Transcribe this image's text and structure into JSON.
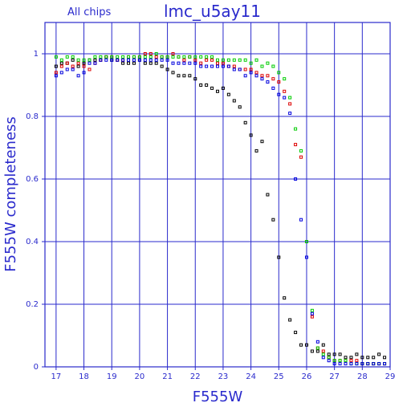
{
  "chart_data": {
    "type": "scatter",
    "subtitle": "All chips",
    "title": "lmc_u5ay11",
    "xlabel": "F555W",
    "ylabel": "F555W completeness",
    "xlim": [
      16.6,
      29
    ],
    "ylim": [
      0,
      1.1
    ],
    "xticks": [
      17,
      18,
      19,
      20,
      21,
      22,
      23,
      24,
      25,
      26,
      27,
      28,
      29
    ],
    "yticks": [
      0,
      0.2,
      0.4,
      0.6,
      0.8,
      1
    ],
    "ytick_labels": [
      "0",
      "0.2",
      "0.4",
      "0.6",
      "0.8",
      "1"
    ],
    "grid": true,
    "colors": {
      "axis": "#2a2acc",
      "grid": "#2a2acc"
    },
    "series": [
      {
        "color": "#000000",
        "x": [
          17.0,
          17.2,
          17.4,
          17.6,
          17.8,
          18.0,
          18.2,
          18.4,
          18.6,
          18.8,
          19.0,
          19.2,
          19.4,
          19.6,
          19.8,
          20.0,
          20.2,
          20.4,
          20.6,
          20.8,
          21.0,
          21.2,
          21.4,
          21.6,
          21.8,
          22.0,
          22.2,
          22.4,
          22.6,
          22.8,
          23.0,
          23.2,
          23.4,
          23.6,
          23.8,
          24.0,
          24.2,
          24.4,
          24.6,
          24.8,
          25.0,
          25.2,
          25.4,
          25.6,
          25.8,
          26.0,
          26.2,
          26.4,
          26.6,
          26.8,
          27.0,
          27.2,
          27.4,
          27.6,
          27.8,
          28.0,
          28.2,
          28.4,
          28.6,
          28.8
        ],
        "y": [
          0.96,
          0.97,
          0.97,
          0.98,
          0.96,
          0.97,
          0.98,
          0.98,
          0.98,
          0.99,
          0.98,
          0.98,
          0.97,
          0.97,
          0.97,
          0.98,
          0.97,
          0.97,
          0.97,
          0.96,
          0.95,
          0.94,
          0.93,
          0.93,
          0.93,
          0.92,
          0.9,
          0.9,
          0.89,
          0.88,
          0.89,
          0.87,
          0.85,
          0.83,
          0.78,
          0.74,
          0.69,
          0.72,
          0.55,
          0.47,
          0.35,
          0.22,
          0.15,
          0.11,
          0.07,
          0.07,
          0.05,
          0.05,
          0.07,
          0.04,
          0.04,
          0.04,
          0.03,
          0.03,
          0.04,
          0.03,
          0.03,
          0.03,
          0.04,
          0.03
        ]
      },
      {
        "color": "#dd0000",
        "x": [
          17.0,
          17.2,
          17.4,
          17.6,
          17.8,
          18.0,
          18.2,
          18.4,
          18.6,
          18.8,
          19.0,
          19.2,
          19.4,
          19.6,
          19.8,
          20.0,
          20.2,
          20.4,
          20.6,
          20.8,
          21.0,
          21.2,
          21.4,
          21.6,
          21.8,
          22.0,
          22.2,
          22.4,
          22.6,
          22.8,
          23.0,
          23.2,
          23.4,
          23.6,
          23.8,
          24.0,
          24.2,
          24.4,
          24.6,
          24.8,
          25.0,
          25.2,
          25.4,
          25.6,
          25.8,
          26.0,
          26.2,
          26.4,
          26.6,
          26.8,
          27.0,
          27.2,
          27.4,
          27.6,
          27.8,
          28.0,
          28.2,
          28.4,
          28.6,
          28.8
        ],
        "y": [
          0.94,
          0.96,
          0.97,
          0.96,
          0.97,
          0.96,
          0.95,
          0.97,
          0.98,
          0.99,
          0.99,
          0.98,
          0.98,
          0.99,
          0.99,
          0.99,
          1.0,
          1.0,
          0.99,
          0.99,
          0.99,
          1.0,
          0.99,
          0.98,
          0.99,
          0.98,
          0.97,
          0.98,
          0.98,
          0.97,
          0.97,
          0.96,
          0.96,
          0.95,
          0.95,
          0.95,
          0.94,
          0.93,
          0.93,
          0.92,
          0.91,
          0.88,
          0.84,
          0.71,
          0.67,
          0.4,
          0.16,
          0.06,
          0.05,
          0.03,
          0.02,
          0.02,
          0.02,
          0.02,
          0.02,
          0.01,
          0.01,
          0.01,
          0.01,
          0.01
        ]
      },
      {
        "color": "#00cc00",
        "x": [
          17.0,
          17.2,
          17.4,
          17.6,
          17.8,
          18.0,
          18.2,
          18.4,
          18.6,
          18.8,
          19.0,
          19.2,
          19.4,
          19.6,
          19.8,
          20.0,
          20.2,
          20.4,
          20.6,
          20.8,
          21.0,
          21.2,
          21.4,
          21.6,
          21.8,
          22.0,
          22.2,
          22.4,
          22.6,
          22.8,
          23.0,
          23.2,
          23.4,
          23.6,
          23.8,
          24.0,
          24.2,
          24.4,
          24.6,
          24.8,
          25.0,
          25.2,
          25.4,
          25.6,
          25.8,
          26.0,
          26.2,
          26.4,
          26.6,
          26.8,
          27.0,
          27.2,
          27.4,
          27.6,
          27.8,
          28.0,
          28.2,
          28.4,
          28.6,
          28.8
        ],
        "y": [
          0.99,
          0.98,
          0.99,
          0.99,
          0.98,
          0.98,
          0.98,
          0.99,
          0.99,
          0.99,
          0.99,
          0.99,
          0.99,
          0.99,
          0.99,
          0.99,
          0.99,
          0.99,
          1.0,
          0.99,
          0.99,
          0.99,
          0.99,
          0.99,
          0.99,
          0.99,
          0.99,
          0.99,
          0.99,
          0.98,
          0.98,
          0.98,
          0.98,
          0.98,
          0.98,
          0.97,
          0.98,
          0.96,
          0.97,
          0.96,
          0.94,
          0.92,
          0.86,
          0.76,
          0.69,
          0.4,
          0.18,
          0.06,
          0.04,
          0.03,
          0.02,
          0.02,
          0.02,
          0.01,
          0.01,
          0.01,
          0.01,
          0.01,
          0.01,
          0.01
        ]
      },
      {
        "color": "#0000dd",
        "x": [
          17.0,
          17.2,
          17.4,
          17.6,
          17.8,
          18.0,
          18.2,
          18.4,
          18.6,
          18.8,
          19.0,
          19.2,
          19.4,
          19.6,
          19.8,
          20.0,
          20.2,
          20.4,
          20.6,
          20.8,
          21.0,
          21.2,
          21.4,
          21.6,
          21.8,
          22.0,
          22.2,
          22.4,
          22.6,
          22.8,
          23.0,
          23.2,
          23.4,
          23.6,
          23.8,
          24.0,
          24.2,
          24.4,
          24.6,
          24.8,
          25.0,
          25.2,
          25.4,
          25.6,
          25.8,
          26.0,
          26.2,
          26.4,
          26.6,
          26.8,
          27.0,
          27.2,
          27.4,
          27.6,
          27.8,
          28.0,
          28.2,
          28.4,
          28.6,
          28.8
        ],
        "y": [
          0.93,
          0.94,
          0.95,
          0.95,
          0.93,
          0.94,
          0.97,
          0.97,
          0.98,
          0.98,
          0.98,
          0.98,
          0.98,
          0.98,
          0.98,
          0.98,
          0.98,
          0.98,
          0.98,
          0.98,
          0.98,
          0.97,
          0.97,
          0.97,
          0.97,
          0.97,
          0.96,
          0.96,
          0.96,
          0.96,
          0.96,
          0.96,
          0.95,
          0.95,
          0.93,
          0.94,
          0.93,
          0.92,
          0.91,
          0.89,
          0.87,
          0.86,
          0.81,
          0.6,
          0.47,
          0.35,
          0.17,
          0.08,
          0.03,
          0.02,
          0.01,
          0.01,
          0.01,
          0.01,
          0.01,
          0.01,
          0.01,
          0.01,
          0.01,
          0.01
        ]
      }
    ]
  }
}
